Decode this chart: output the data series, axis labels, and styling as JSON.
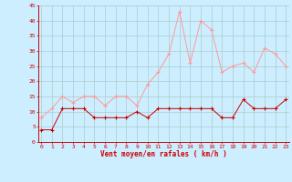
{
  "x": [
    0,
    1,
    2,
    3,
    4,
    5,
    6,
    7,
    8,
    9,
    10,
    11,
    12,
    13,
    14,
    15,
    16,
    17,
    18,
    19,
    20,
    21,
    22,
    23
  ],
  "wind_avg": [
    4,
    4,
    11,
    11,
    11,
    8,
    8,
    8,
    8,
    10,
    8,
    11,
    11,
    11,
    11,
    11,
    11,
    8,
    8,
    14,
    11,
    11,
    11,
    14
  ],
  "wind_gust": [
    8,
    11,
    15,
    13,
    15,
    15,
    12,
    15,
    15,
    12,
    19,
    23,
    29,
    43,
    26,
    40,
    37,
    23,
    25,
    26,
    23,
    31,
    29,
    25
  ],
  "xlabel": "Vent moyen/en rafales ( km/h )",
  "ylim": [
    0,
    45
  ],
  "yticks": [
    0,
    5,
    10,
    15,
    20,
    25,
    30,
    35,
    40,
    45
  ],
  "xticks": [
    0,
    1,
    2,
    3,
    4,
    5,
    6,
    7,
    8,
    9,
    10,
    11,
    12,
    13,
    14,
    15,
    16,
    17,
    18,
    19,
    20,
    21,
    22,
    23
  ],
  "avg_color": "#cc0000",
  "gust_color": "#ff9999",
  "bg_color": "#cceeff",
  "grid_color": "#aacccc",
  "xlabel_color": "#cc0000",
  "tick_color": "#cc0000",
  "spine_color": "#cc0000"
}
